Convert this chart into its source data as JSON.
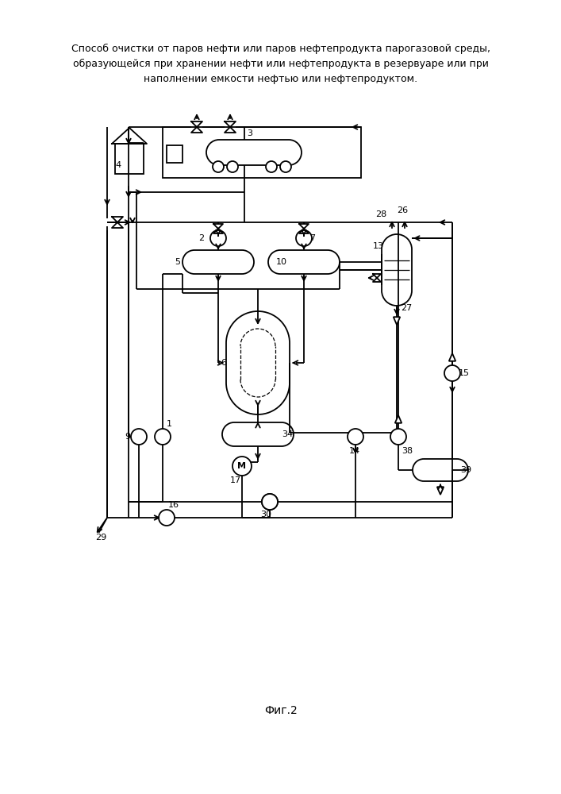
{
  "title": "Способ очистки от паров нефти или паров нефтепродукта парогазовой среды,\nобразующейся при хранении нефти или нефтепродукта в резервуаре или при\nнаполнении емкости нефтью или нефтепродуктом.",
  "caption": "Фиг.2",
  "bg": "#ffffff",
  "lc": "#000000",
  "lw": 1.3
}
